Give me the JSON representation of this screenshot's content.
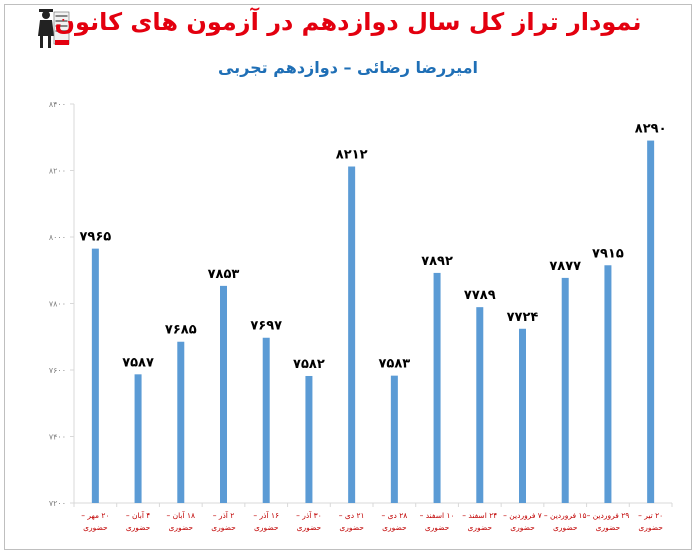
{
  "title": "نمودار تراز کل سال دوازدهم در آزمون های کانون",
  "subtitle": "امیررضا رضائی – دوازدهم تجربی",
  "colors": {
    "title": "#e3000f",
    "subtitle": "#1f6fb6",
    "bar": "#5b9bd5",
    "axis_text": "#7f7f7f",
    "category_text": "#c00000"
  },
  "logo": {
    "icon": "graduate-reader-icon"
  },
  "chart_data": {
    "type": "bar",
    "title": "نمودار تراز کل سال دوازدهم در آزمون های کانون",
    "subtitle": "امیررضا رضائی – دوازدهم تجربی",
    "categories": [
      {
        "line1": "۲۰ مهر –",
        "line2": "حضوری"
      },
      {
        "line1": "۴ آبان –",
        "line2": "حضوری"
      },
      {
        "line1": "۱۸ آبان –",
        "line2": "حضوری"
      },
      {
        "line1": "۲ آذر –",
        "line2": "حضوری"
      },
      {
        "line1": "۱۶ آذر –",
        "line2": "حضوری"
      },
      {
        "line1": "۳۰ آذر –",
        "line2": "حضوری"
      },
      {
        "line1": "۲۱ دی –",
        "line2": "حضوری"
      },
      {
        "line1": "۲۸ دی –",
        "line2": "حضوری"
      },
      {
        "line1": "۱۰ اسفند –",
        "line2": "حضوری"
      },
      {
        "line1": "۲۴ اسفند –",
        "line2": "حضوری"
      },
      {
        "line1": "۷ فروردین –",
        "line2": "حضوری"
      },
      {
        "line1": "۱۵ فروردین –",
        "line2": "حضوری"
      },
      {
        "line1": "۲۹ فروردین –",
        "line2": "حضوری"
      },
      {
        "line1": "۲۰ تیر –",
        "line2": "حضوری"
      }
    ],
    "values": [
      7965,
      7587,
      7685,
      7853,
      7697,
      7582,
      8212,
      7583,
      7892,
      7789,
      7724,
      7877,
      7915,
      8290
    ],
    "value_labels": [
      "۷۹۶۵",
      "۷۵۸۷",
      "۷۶۸۵",
      "۷۸۵۳",
      "۷۶۹۷",
      "۷۵۸۲",
      "۸۲۱۲",
      "۷۵۸۳",
      "۷۸۹۲",
      "۷۷۸۹",
      "۷۷۲۴",
      "۷۸۷۷",
      "۷۹۱۵",
      "۸۲۹۰"
    ],
    "yticks": [
      7200,
      7400,
      7600,
      7800,
      8000,
      8200,
      8400
    ],
    "ytick_labels": [
      "۷۲۰۰",
      "۷۴۰۰",
      "۷۶۰۰",
      "۷۸۰۰",
      "۸۰۰۰",
      "۸۲۰۰",
      "۸۴۰۰"
    ],
    "ylim": [
      7200,
      8400
    ],
    "xlabel": "",
    "ylabel": "",
    "grid": false,
    "legend": "none"
  }
}
